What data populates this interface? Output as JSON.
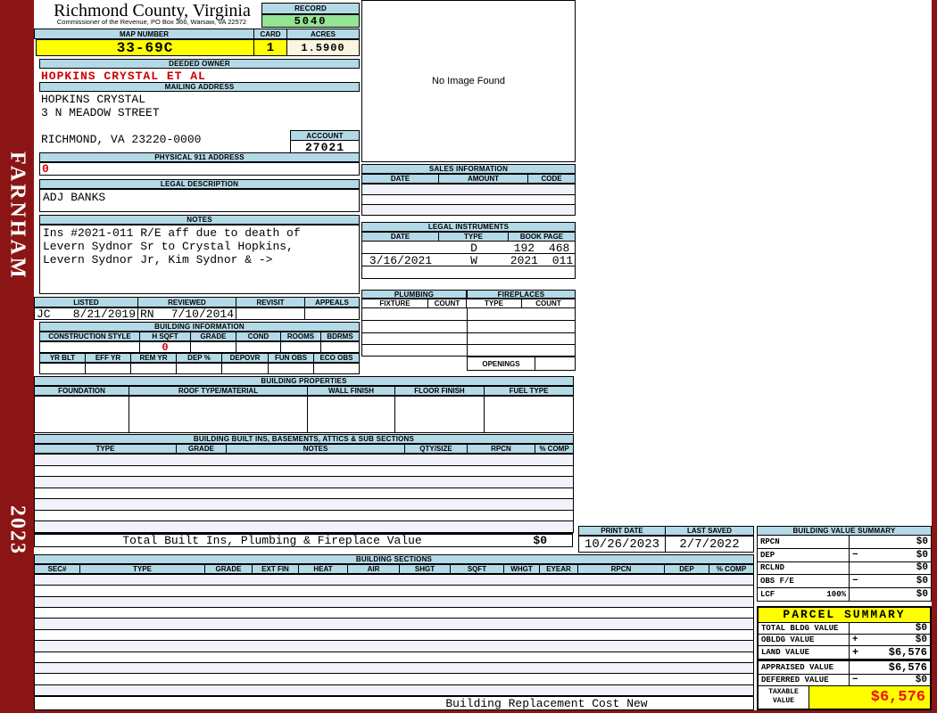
{
  "frame": {
    "district": "FARNHAM",
    "year": "2023"
  },
  "header": {
    "title": "Richmond County, Virginia",
    "subtitle": "Commissioner of the Revenue, PO Box 366, Warsaw, VA 22572",
    "record_label": "RECORD",
    "record_value": "5040",
    "map_number_label": "MAP NUMBER",
    "map_number": "33-69C",
    "card_label": "CARD",
    "card": "1",
    "acres_label": "ACRES",
    "acres": "1.5900"
  },
  "owner": {
    "deeded_owner_label": "DEEDED OWNER",
    "deeded_owner": "HOPKINS CRYSTAL ET AL",
    "mailing_address_label": "MAILING ADDRESS",
    "mailing_lines": [
      "HOPKINS CRYSTAL",
      "3 N MEADOW STREET",
      "",
      "RICHMOND, VA 23220-0000"
    ],
    "account_label": "ACCOUNT",
    "account": "27021",
    "physical_address_label": "PHYSICAL 911 ADDRESS",
    "physical_address": "0",
    "legal_description_label": "LEGAL DESCRIPTION",
    "legal_description": "ADJ BANKS",
    "notes_label": "NOTES",
    "notes_lines": [
      "Ins #2021-011 R/E aff due to death of",
      "Levern Sydnor Sr to Crystal Hopkins,",
      "Levern Sydnor Jr, Kim Sydnor & ->"
    ]
  },
  "review": {
    "headers": [
      "LISTED",
      "REVIEWED",
      "REVISIT",
      "APPEALS"
    ],
    "listed_by": "JC",
    "listed_date": "8/21/2019",
    "reviewed_by": "RN",
    "reviewed_date": "7/10/2014",
    "revisit": "",
    "appeals": ""
  },
  "building_information": {
    "title": "BUILDING INFORMATION",
    "row1_headers": [
      "CONSTRUCTION STYLE",
      "H SQFT",
      "GRADE",
      "COND",
      "ROOMS",
      "BDRMS"
    ],
    "h_sqft": "0",
    "row2_headers": [
      "YR BLT",
      "EFF YR",
      "REM YR",
      "DEP %",
      "DEPOVR",
      "FUN OBS",
      "ECO OBS"
    ]
  },
  "building_properties": {
    "title": "BUILDING PROPERTIES",
    "headers": [
      "FOUNDATION",
      "ROOF TYPE/MATERIAL",
      "WALL FINISH",
      "FLOOR FINISH",
      "FUEL TYPE"
    ]
  },
  "built_ins": {
    "title": "BUILDING BUILT INS, BASEMENTS, ATTICS & SUB SECTIONS",
    "headers": [
      "TYPE",
      "GRADE",
      "NOTES",
      "QTY/SIZE",
      "RPCN",
      "% COMP"
    ],
    "total_label": "Total Built Ins, Plumbing & Fireplace Value",
    "total_value": "$0"
  },
  "photo": {
    "placeholder": "No Image Found"
  },
  "sales": {
    "title": "SALES INFORMATION",
    "headers": [
      "DATE",
      "AMOUNT",
      "CODE"
    ]
  },
  "legal_instruments": {
    "title": "LEGAL INSTRUMENTS",
    "headers": [
      "DATE",
      "TYPE",
      "BOOK PAGE"
    ],
    "rows": [
      {
        "date": "",
        "type": "D",
        "book_page": "192 468"
      },
      {
        "date": "3/16/2021",
        "type": "W",
        "book_page": "2021 011"
      },
      {
        "date": "",
        "type": "",
        "book_page": ""
      }
    ]
  },
  "plumbing": {
    "title": "PLUMBING",
    "headers": [
      "FIXTURE",
      "COUNT"
    ]
  },
  "fireplaces": {
    "title": "FIREPLACES",
    "headers": [
      "TYPE",
      "COUNT"
    ],
    "openings_label": "OPENINGS"
  },
  "print_info": {
    "print_date_label": "PRINT DATE",
    "print_date": "10/26/2023",
    "last_saved_label": "LAST SAVED",
    "last_saved": "2/7/2022"
  },
  "building_sections": {
    "title": "BUILDING SECTIONS",
    "headers": [
      "SEC#",
      "TYPE",
      "GRADE",
      "EXT FIN",
      "HEAT",
      "AIR",
      "SHGT",
      "SQFT",
      "WHGT",
      "EYEAR",
      "RPCN",
      "DEP",
      "% COMP"
    ],
    "footer": "Building Replacement Cost New"
  },
  "building_value_summary": {
    "title": "BUILDING VALUE SUMMARY",
    "rows": [
      {
        "label": "RPCN",
        "sub": "",
        "op": "",
        "value": "$0"
      },
      {
        "label": "DEP",
        "sub": "",
        "op": "−",
        "value": "$0"
      },
      {
        "label": "RCLND",
        "sub": "",
        "op": "",
        "value": "$0"
      },
      {
        "label": "OBS F/E",
        "sub": "",
        "op": "−",
        "value": "$0"
      },
      {
        "label": "LCF",
        "sub": "100%",
        "op": "",
        "value": "$0"
      }
    ]
  },
  "parcel_summary": {
    "title": "PARCEL SUMMARY",
    "rows": [
      {
        "label": "TOTAL BLDG VALUE",
        "op": "",
        "value": "$0"
      },
      {
        "label": "OBLDG VALUE",
        "op": "+",
        "value": "$0"
      },
      {
        "label": "LAND VALUE",
        "op": "+",
        "value": "$6,576"
      },
      {
        "label": "APPRAISED VALUE",
        "op": "",
        "value": "$6,576"
      },
      {
        "label": "DEFERRED VALUE",
        "op": "−",
        "value": "$0"
      }
    ],
    "taxable_label": "TAXABLE VALUE",
    "taxable_value": "$6,576"
  },
  "colors": {
    "accent_blue": "#b4d9e7",
    "record_green": "#93e493",
    "highlight_yellow": "#ffff00",
    "alert_red": "#cc0000",
    "frame_maroon": "#8b1515"
  }
}
